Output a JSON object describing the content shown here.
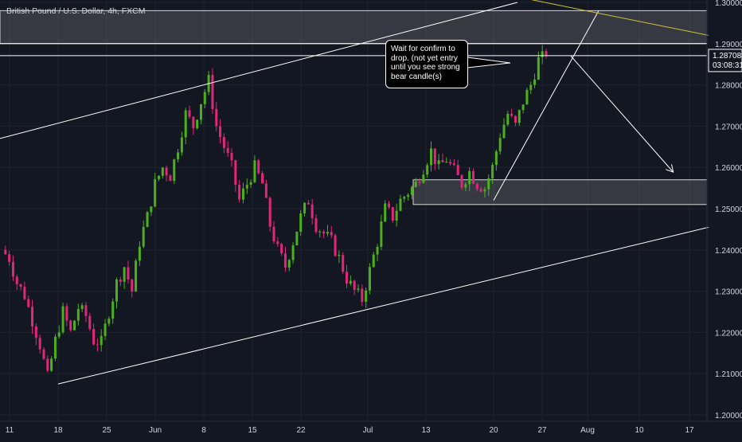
{
  "chart_title": "British Pound / U.S. Dollar, 4h, FXCM",
  "colors": {
    "background": "#131722",
    "grid": "#1e2330",
    "axis_text": "#d1d4dc",
    "up_candle": "#4caf1e",
    "down_candle": "#e0287a",
    "drawing": "#ffffff",
    "yellow_line": "#cfc23a",
    "zone_fill": "rgba(255,255,255,0.15)"
  },
  "annotation": {
    "text": "Wait for confirm to drop. (not yet entry until you see strong bear candle(s)"
  },
  "price_badge": {
    "price": "1.28708",
    "countdown": "03:08:31",
    "color": "#ffffff"
  },
  "chart_data": {
    "type": "candlestick",
    "instrument": "GBP/USD",
    "timeframe": "4h",
    "y_ticks": [
      "1.30000",
      "1.29000",
      "1.28000",
      "1.27000",
      "1.26000",
      "1.25000",
      "1.24000",
      "1.23000",
      "1.22000",
      "1.21000",
      "1.20000"
    ],
    "x_ticks": [
      "11",
      "18",
      "25",
      "Jun",
      "8",
      "15",
      "22",
      "Jul",
      "13",
      "20",
      "27",
      "Aug",
      "10",
      "17"
    ],
    "ylim": [
      1.2,
      1.3
    ],
    "grid": true,
    "close_path": [
      [
        0,
        1.24
      ],
      [
        2,
        1.238
      ],
      [
        4,
        1.232
      ],
      [
        6,
        1.229
      ],
      [
        8,
        1.223
      ],
      [
        10,
        1.217
      ],
      [
        12,
        1.209
      ],
      [
        14,
        1.218
      ],
      [
        16,
        1.225
      ],
      [
        18,
        1.22
      ],
      [
        20,
        1.226
      ],
      [
        22,
        1.224
      ],
      [
        24,
        1.218
      ],
      [
        26,
        1.2175
      ],
      [
        28,
        1.225
      ],
      [
        30,
        1.232
      ],
      [
        32,
        1.236
      ],
      [
        34,
        1.23
      ],
      [
        36,
        1.242
      ],
      [
        38,
        1.248
      ],
      [
        40,
        1.256
      ],
      [
        42,
        1.26
      ],
      [
        44,
        1.258
      ],
      [
        46,
        1.265
      ],
      [
        48,
        1.273
      ],
      [
        50,
        1.27
      ],
      [
        52,
        1.276
      ],
      [
        54,
        1.281
      ],
      [
        56,
        1.27
      ],
      [
        58,
        1.265
      ],
      [
        60,
        1.26
      ],
      [
        62,
        1.252
      ],
      [
        64,
        1.256
      ],
      [
        66,
        1.26
      ],
      [
        68,
        1.256
      ],
      [
        70,
        1.246
      ],
      [
        72,
        1.24
      ],
      [
        74,
        1.236
      ],
      [
        76,
        1.242
      ],
      [
        78,
        1.248
      ],
      [
        80,
        1.252
      ],
      [
        82,
        1.246
      ],
      [
        84,
        1.244
      ],
      [
        86,
        1.242
      ],
      [
        88,
        1.238
      ],
      [
        90,
        1.233
      ],
      [
        92,
        1.23
      ],
      [
        94,
        1.228
      ],
      [
        96,
        1.235
      ],
      [
        98,
        1.242
      ],
      [
        100,
        1.25
      ],
      [
        102,
        1.248
      ],
      [
        104,
        1.252
      ],
      [
        106,
        1.254
      ],
      [
        108,
        1.256
      ],
      [
        110,
        1.26
      ],
      [
        112,
        1.264
      ],
      [
        114,
        1.26
      ],
      [
        116,
        1.262
      ],
      [
        118,
        1.259
      ],
      [
        120,
        1.256
      ],
      [
        122,
        1.259
      ],
      [
        124,
        1.256
      ],
      [
        126,
        1.255
      ],
      [
        128,
        1.26
      ],
      [
        130,
        1.268
      ],
      [
        132,
        1.273
      ],
      [
        134,
        1.27
      ],
      [
        136,
        1.276
      ],
      [
        138,
        1.28
      ],
      [
        140,
        1.286
      ],
      [
        142,
        1.2871
      ]
    ],
    "zones": [
      {
        "from": 1.298,
        "to": 1.29
      },
      {
        "from": 1.257,
        "to": 1.251
      }
    ],
    "levels": [
      1.29,
      1.2871
    ],
    "lines": [
      {
        "name": "upper channel",
        "from": [
          "May 7",
          1.267
        ],
        "to": [
          "Jul 25",
          1.3
        ]
      },
      {
        "name": "lower channel",
        "from": [
          "May 18",
          1.2075
        ],
        "to": [
          "Aug 20",
          1.2455
        ]
      },
      {
        "name": "steep trendline",
        "from": [
          "Jul 20",
          1.252
        ],
        "to": [
          "Jul 31",
          1.298
        ]
      },
      {
        "name": "yellow line",
        "from": [
          "Jul 22",
          1.302
        ],
        "to": [
          "Aug 20",
          1.292
        ]
      }
    ],
    "projection_arrow": {
      "from": [
        "Jul 28",
        1.287
      ],
      "to": [
        "Aug 13",
        1.259
      ]
    }
  }
}
